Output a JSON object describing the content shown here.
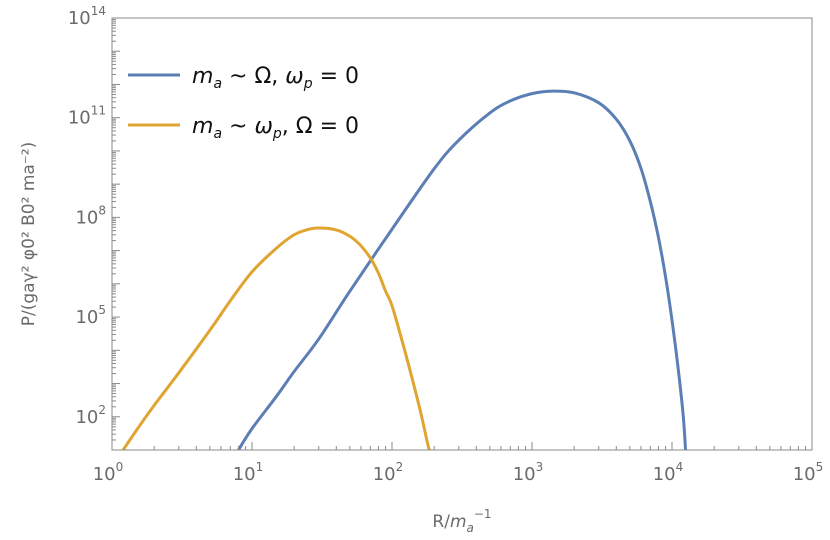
{
  "chart_data": {
    "type": "line",
    "xscale": "log",
    "yscale": "log",
    "xlim": [
      1,
      100000
    ],
    "ylim": [
      10,
      100000000000000
    ],
    "xlabel": {
      "base": "R/",
      "var": "m",
      "sub": "a",
      "sup": "−1"
    },
    "ylabel": "P/(gaγ² φ0² B0² ma⁻²)",
    "x_ticks": [
      {
        "value": 1,
        "base": "10",
        "exp": "0"
      },
      {
        "value": 10,
        "base": "10",
        "exp": "1"
      },
      {
        "value": 100,
        "base": "10",
        "exp": "2"
      },
      {
        "value": 1000,
        "base": "10",
        "exp": "3"
      },
      {
        "value": 10000,
        "base": "10",
        "exp": "4"
      },
      {
        "value": 100000,
        "base": "10",
        "exp": "5"
      }
    ],
    "y_ticks": [
      {
        "value": 100,
        "base": "10",
        "exp": "2"
      },
      {
        "value": 100000,
        "base": "10",
        "exp": "5"
      },
      {
        "value": 100000000,
        "base": "10",
        "exp": "8"
      },
      {
        "value": 100000000000,
        "base": "10",
        "exp": "11"
      },
      {
        "value": 100000000000000,
        "base": "10",
        "exp": "14"
      }
    ],
    "legend_position": "top-left",
    "series": [
      {
        "name": "ma ~ Ω, ωp = 0",
        "label_main": "m",
        "label_sub": "a",
        "label_rest": " ~ Ω, ",
        "label_var2": "ω",
        "label_sub2": "p",
        "label_tail": " = 0",
        "color": "#5b7fb5",
        "points": [
          [
            8.0,
            10
          ],
          [
            10,
            44
          ],
          [
            15,
            420
          ],
          [
            20,
            2300
          ],
          [
            30,
            22000
          ],
          [
            50,
            600000
          ],
          [
            100,
            44000000
          ],
          [
            200,
            2900000000
          ],
          [
            300,
            21000000000
          ],
          [
            500,
            139000000000
          ],
          [
            700,
            320000000000
          ],
          [
            1000,
            530000000000
          ],
          [
            1400,
            630000000000
          ],
          [
            2000,
            560000000000
          ],
          [
            3000,
            280000000000
          ],
          [
            4000,
            90000000000
          ],
          [
            5000,
            20000000000
          ],
          [
            6000,
            3000000000
          ],
          [
            7000,
            300000000
          ],
          [
            8000,
            25000000
          ],
          [
            9000,
            1600000
          ],
          [
            10000,
            80000
          ],
          [
            11000,
            3500
          ],
          [
            12000,
            120
          ],
          [
            12500,
            10
          ]
        ]
      },
      {
        "name": "ma ~ ωp, Ω = 0",
        "label_main": "m",
        "label_sub": "a",
        "label_rest": " ~ ",
        "label_var2": "ω",
        "label_sub2": "p",
        "label_tail": ", Ω = 0",
        "color": "#e0a430",
        "points": [
          [
            1.2,
            10
          ],
          [
            1.5,
            40
          ],
          [
            2,
            220
          ],
          [
            3,
            2100
          ],
          [
            5,
            40000
          ],
          [
            7,
            310000
          ],
          [
            10,
            2300000
          ],
          [
            15,
            12000000
          ],
          [
            20,
            30000000
          ],
          [
            25,
            43000000
          ],
          [
            30,
            48000000
          ],
          [
            40,
            42000000
          ],
          [
            50,
            27000000
          ],
          [
            60,
            14000000
          ],
          [
            70,
            6000000
          ],
          [
            80,
            2100000
          ],
          [
            90,
            600000
          ],
          [
            100,
            220000
          ],
          [
            120,
            15000
          ],
          [
            140,
            1300
          ],
          [
            160,
            140
          ],
          [
            180,
            15
          ],
          [
            185,
            10
          ]
        ]
      }
    ]
  }
}
